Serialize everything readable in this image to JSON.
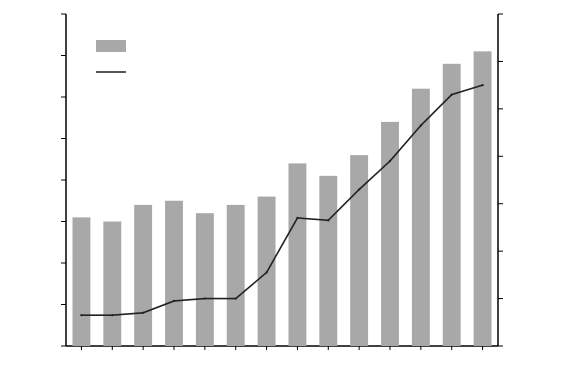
{
  "chart_data": {
    "type": "bar",
    "title": "",
    "legend_position": "top-left",
    "grid": false,
    "categories": [
      "",
      "",
      "",
      "",
      "",
      "",
      "",
      "",
      "",
      "",
      "",
      "",
      "",
      ""
    ],
    "left_axis": {
      "label": "",
      "range": [
        1,
        9
      ],
      "ticks": [
        "",
        "",
        "",
        "",
        "",
        "",
        "",
        "",
        ""
      ]
    },
    "right_axis": {
      "label": "",
      "range": [
        0,
        14
      ],
      "ticks": [
        "",
        "",
        "",
        "",
        "",
        "",
        "",
        ""
      ]
    },
    "series": [
      {
        "name": "",
        "kind": "bar",
        "axis": "left",
        "color": "#a8a8a8",
        "values": [
          4.1,
          4.0,
          4.4,
          4.5,
          4.2,
          4.4,
          4.6,
          5.4,
          5.1,
          5.6,
          6.4,
          7.2,
          7.8,
          8.1
        ]
      },
      {
        "name": "",
        "kind": "line",
        "axis": "right",
        "color": "#222222",
        "values": [
          1.3,
          1.3,
          1.4,
          1.9,
          2.0,
          2.0,
          3.1,
          5.4,
          5.3,
          6.6,
          7.8,
          9.3,
          10.6,
          11.0
        ]
      }
    ]
  }
}
